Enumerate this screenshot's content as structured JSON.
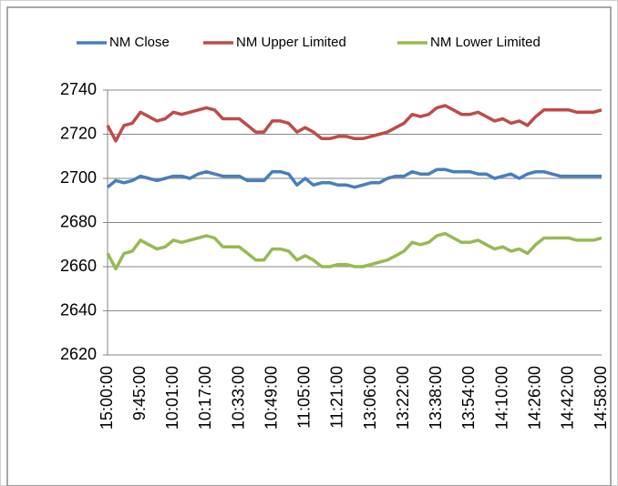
{
  "chart_data": {
    "type": "line",
    "categories": [
      "15:00:00",
      null,
      null,
      null,
      "9:45:00",
      null,
      null,
      null,
      "10:01:00",
      null,
      null,
      null,
      "10:17:00",
      null,
      null,
      null,
      "10:33:00",
      null,
      null,
      null,
      "10:49:00",
      null,
      null,
      null,
      "11:05:00",
      null,
      null,
      null,
      "11:21:00",
      null,
      null,
      null,
      "13:06:00",
      null,
      null,
      null,
      "13:22:00",
      null,
      null,
      null,
      "13:38:00",
      null,
      null,
      null,
      "13:54:00",
      null,
      null,
      null,
      "14:10:00",
      null,
      null,
      null,
      "14:26:00",
      null,
      null,
      null,
      "14:42:00",
      null,
      null,
      null,
      "14:58:00"
    ],
    "series": [
      {
        "name": "NM Close",
        "color": "#4a7ebb",
        "values": [
          2696,
          2699,
          2698,
          2699,
          2701,
          2700,
          2699,
          2700,
          2701,
          2701,
          2700,
          2702,
          2703,
          2702,
          2701,
          2701,
          2701,
          2699,
          2699,
          2699,
          2703,
          2703,
          2702,
          2697,
          2700,
          2697,
          2698,
          2698,
          2697,
          2697,
          2696,
          2697,
          2698,
          2698,
          2700,
          2701,
          2701,
          2703,
          2702,
          2702,
          2704,
          2704,
          2703,
          2703,
          2703,
          2702,
          2702,
          2700,
          2701,
          2702,
          2700,
          2702,
          2703,
          2703,
          2702,
          2701,
          2701,
          2701,
          2701,
          2701,
          2701
        ]
      },
      {
        "name": "NM Upper Limited",
        "color": "#be4b48",
        "values": [
          2724,
          2717,
          2724,
          2725,
          2730,
          2728,
          2726,
          2727,
          2730,
          2729,
          2730,
          2731,
          2732,
          2731,
          2727,
          2727,
          2727,
          2724,
          2721,
          2721,
          2726,
          2726,
          2725,
          2721,
          2723,
          2721,
          2718,
          2718,
          2719,
          2719,
          2718,
          2718,
          2719,
          2720,
          2721,
          2723,
          2725,
          2729,
          2728,
          2729,
          2732,
          2733,
          2731,
          2729,
          2729,
          2730,
          2728,
          2726,
          2727,
          2725,
          2726,
          2724,
          2728,
          2731,
          2731,
          2731,
          2731,
          2730,
          2730,
          2730,
          2731
        ]
      },
      {
        "name": "NM Lower Limited",
        "color": "#98b954",
        "values": [
          2666,
          2659,
          2666,
          2667,
          2672,
          2670,
          2668,
          2669,
          2672,
          2671,
          2672,
          2673,
          2674,
          2673,
          2669,
          2669,
          2669,
          2666,
          2663,
          2663,
          2668,
          2668,
          2667,
          2663,
          2665,
          2663,
          2660,
          2660,
          2661,
          2661,
          2660,
          2660,
          2661,
          2662,
          2663,
          2665,
          2667,
          2671,
          2670,
          2671,
          2674,
          2675,
          2673,
          2671,
          2671,
          2672,
          2670,
          2668,
          2669,
          2667,
          2668,
          2666,
          2670,
          2673,
          2673,
          2673,
          2673,
          2672,
          2672,
          2672,
          2673
        ]
      }
    ],
    "ylim": [
      2620,
      2740
    ],
    "yticks": [
      2620,
      2640,
      2660,
      2680,
      2700,
      2720,
      2740
    ],
    "grid": true,
    "legend": "top"
  }
}
